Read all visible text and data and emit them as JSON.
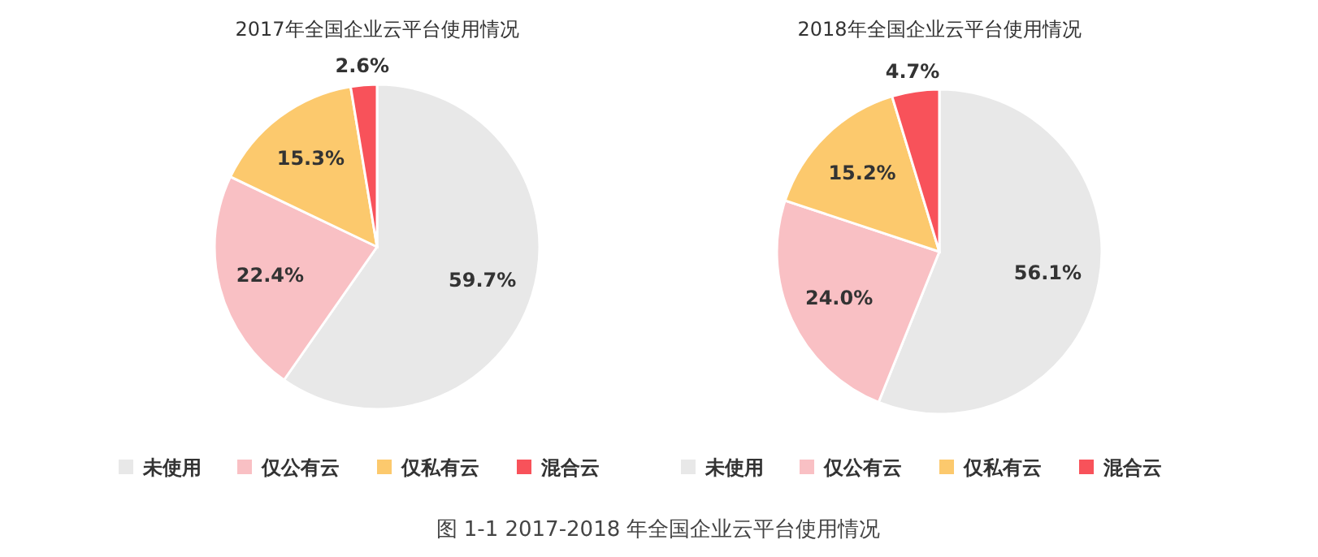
{
  "chart_data": [
    {
      "type": "pie",
      "title": "2017年全国企业云平台使用情况",
      "categories": [
        "未使用",
        "仅公有云",
        "仅私有云",
        "混合云"
      ],
      "values": [
        59.7,
        22.4,
        15.3,
        2.6
      ],
      "value_labels": [
        "59.7%",
        "22.4%",
        "15.3%",
        "2.6%"
      ],
      "colors": [
        "#e8e8e8",
        "#f9c0c4",
        "#fcc96d",
        "#f8525a"
      ],
      "legend": "bottom",
      "annotations": [
        "图 1-1 2017-2018 年全国企业云平台使用情况"
      ]
    },
    {
      "type": "pie",
      "title": "2018年全国企业云平台使用情况",
      "categories": [
        "未使用",
        "仅公有云",
        "仅私有云",
        "混合云"
      ],
      "values": [
        56.1,
        24.0,
        15.2,
        4.7
      ],
      "value_labels": [
        "56.1%",
        "24.0%",
        "15.2%",
        "4.7%"
      ],
      "colors": [
        "#e8e8e8",
        "#f9c0c4",
        "#fcc96d",
        "#f8525a"
      ],
      "legend": "bottom"
    }
  ]
}
